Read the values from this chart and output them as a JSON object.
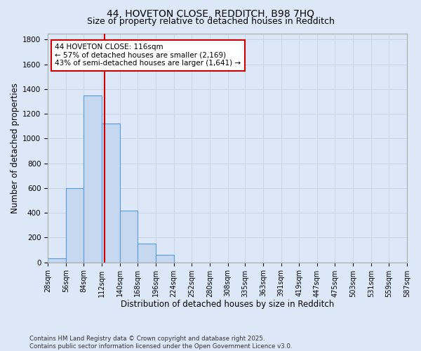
{
  "title_line1": "44, HOVETON CLOSE, REDDITCH, B98 7HQ",
  "title_line2": "Size of property relative to detached houses in Redditch",
  "xlabel": "Distribution of detached houses by size in Redditch",
  "ylabel": "Number of detached properties",
  "bin_edges": [
    28,
    56,
    84,
    112,
    140,
    168,
    196,
    224,
    252,
    280,
    308,
    335,
    363,
    391,
    419,
    447,
    475,
    503,
    531,
    559,
    587
  ],
  "bar_heights": [
    30,
    600,
    1350,
    1120,
    420,
    150,
    60,
    0,
    0,
    0,
    0,
    0,
    0,
    0,
    0,
    0,
    0,
    0,
    0,
    0
  ],
  "bar_color": "#c5d8f0",
  "bar_edgecolor": "#5b9bd5",
  "bar_alpha": 1.0,
  "vline_x": 116,
  "vline_color": "#cc0000",
  "annotation_text": "44 HOVETON CLOSE: 116sqm\n← 57% of detached houses are smaller (2,169)\n43% of semi-detached houses are larger (1,641) →",
  "annotation_box_color": "#ffffff",
  "annotation_box_edgecolor": "#cc0000",
  "ylim": [
    0,
    1850
  ],
  "yticks": [
    0,
    200,
    400,
    600,
    800,
    1000,
    1200,
    1400,
    1600,
    1800
  ],
  "grid_color": "#c8d4e8",
  "bg_color": "#dce8f8",
  "footnote_line1": "Contains HM Land Registry data © Crown copyright and database right 2025.",
  "footnote_line2": "Contains public sector information licensed under the Open Government Licence v3.0.",
  "title_fontsize": 10,
  "subtitle_fontsize": 9,
  "axis_label_fontsize": 8.5,
  "tick_fontsize": 7,
  "annot_fontsize": 7.5
}
